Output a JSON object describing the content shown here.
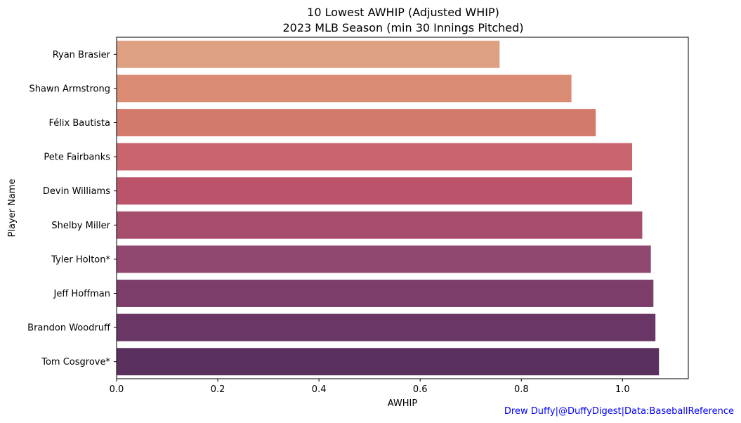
{
  "chart_data": {
    "type": "bar",
    "orientation": "horizontal",
    "title": "10 Lowest AWHIP (Adjusted WHIP)",
    "subtitle": "2023 MLB Season (min 30 Innings Pitched)",
    "xlabel": "AWHIP",
    "ylabel": "Player Name",
    "xlim": [
      0,
      1.13
    ],
    "xticks": [
      "0.0",
      "0.2",
      "0.4",
      "0.6",
      "0.8",
      "1.0"
    ],
    "categories": [
      "Ryan Brasier",
      "Shawn Armstrong",
      "Félix Bautista",
      "Pete Fairbanks",
      "Devin Williams",
      "Shelby Miller",
      "Tyler Holton*",
      "Jeff Hoffman",
      "Brandon Woodruff",
      "Tom Cosgrove*"
    ],
    "values": [
      0.757,
      0.899,
      0.947,
      1.019,
      1.019,
      1.039,
      1.056,
      1.061,
      1.065,
      1.072
    ],
    "colors": [
      "#dea083",
      "#d98b74",
      "#d47a6d",
      "#c8656d",
      "#bb546a",
      "#a74e6e",
      "#904770",
      "#7d3d6a",
      "#6a3665",
      "#5a305f"
    ],
    "grid": false,
    "legend": "none",
    "credit": "Drew Duffy|@DuffyDigest|Data:BaseballReference"
  }
}
